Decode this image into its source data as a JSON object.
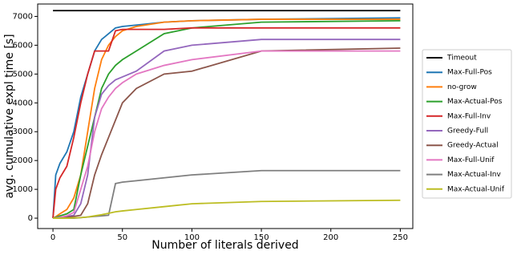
{
  "chart_data": {
    "type": "line",
    "xlabel": "Number of literals derived",
    "ylabel": "avg. cumulative expl time [s]",
    "x": [
      0,
      2,
      5,
      10,
      15,
      20,
      25,
      30,
      35,
      40,
      45,
      50,
      60,
      80,
      100,
      150,
      250
    ],
    "xlim": [
      -11,
      259
    ],
    "xticks": [
      0,
      50,
      100,
      150,
      200,
      250
    ],
    "ylim": [
      -360,
      7430
    ],
    "yticks": [
      0,
      1000,
      2000,
      3000,
      4000,
      5000,
      6000,
      7000
    ],
    "grid": false,
    "legend": "outside-right",
    "series": [
      {
        "name": "Timeout",
        "color": "#000000",
        "values": [
          7200,
          7200,
          7200,
          7200,
          7200,
          7200,
          7200,
          7200,
          7200,
          7200,
          7200,
          7200,
          7200,
          7200,
          7200,
          7200,
          7200
        ]
      },
      {
        "name": "Max-Full-Pos",
        "color": "#1f77b4",
        "values": [
          0,
          1500,
          1900,
          2300,
          3000,
          4200,
          5000,
          5800,
          6200,
          6400,
          6600,
          6650,
          6700,
          6800,
          6850,
          6900,
          6950
        ]
      },
      {
        "name": "no-grow",
        "color": "#ff7f0e",
        "values": [
          0,
          50,
          150,
          300,
          700,
          1500,
          3000,
          4500,
          5500,
          6000,
          6300,
          6500,
          6650,
          6800,
          6850,
          6900,
          6900
        ]
      },
      {
        "name": "Max-Actual-Pos",
        "color": "#2ca02c",
        "values": [
          0,
          30,
          80,
          150,
          300,
          1500,
          2500,
          3500,
          4500,
          5000,
          5300,
          5500,
          5800,
          6400,
          6600,
          6800,
          6850
        ]
      },
      {
        "name": "Max-Full-Inv",
        "color": "#d62728",
        "values": [
          0,
          1000,
          1400,
          1800,
          2800,
          4000,
          5000,
          5800,
          5800,
          5800,
          6500,
          6550,
          6550,
          6550,
          6600,
          6600,
          6600
        ]
      },
      {
        "name": "Greedy-Full",
        "color": "#9467bd",
        "values": [
          0,
          10,
          30,
          60,
          100,
          500,
          1500,
          3500,
          4300,
          4600,
          4800,
          4900,
          5100,
          5800,
          6000,
          6200,
          6200
        ]
      },
      {
        "name": "Greedy-Actual",
        "color": "#8c564b",
        "values": [
          0,
          5,
          10,
          30,
          60,
          100,
          500,
          1500,
          2200,
          2800,
          3400,
          4000,
          4500,
          5000,
          5100,
          5800,
          5900
        ]
      },
      {
        "name": "Max-Full-Unif",
        "color": "#e377c2",
        "values": [
          0,
          10,
          30,
          80,
          200,
          1000,
          1800,
          3000,
          3800,
          4200,
          4500,
          4700,
          5000,
          5300,
          5500,
          5800,
          5800
        ]
      },
      {
        "name": "Max-Actual-Inv",
        "color": "#7f7f7f",
        "values": [
          0,
          0,
          0,
          0,
          0,
          20,
          40,
          60,
          80,
          100,
          1200,
          1250,
          1300,
          1400,
          1500,
          1650,
          1650
        ]
      },
      {
        "name": "Max-Actual-Unif",
        "color": "#bcbd22",
        "values": [
          0,
          0,
          0,
          0,
          10,
          20,
          40,
          80,
          120,
          170,
          220,
          250,
          300,
          400,
          500,
          580,
          620
        ]
      }
    ]
  }
}
